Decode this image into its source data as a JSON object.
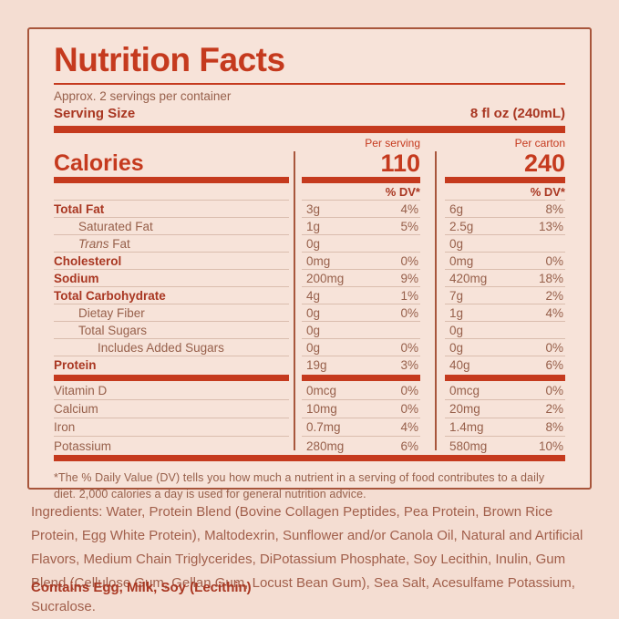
{
  "colors": {
    "page-bg": "#f4ddd2",
    "panel-bg": "#f7e3d9",
    "accent": "#c53a1e",
    "dark-red": "#a93722",
    "brown": "#97604b",
    "line": "#dabdae",
    "border": "#a8563c"
  },
  "header": {
    "title": "Nutrition Facts",
    "servings_per_container": "Approx. 2 servings per container",
    "serving_size_label": "Serving Size",
    "serving_size_value": "8 fl oz (240mL)"
  },
  "calories": {
    "label": "Calories",
    "per_serving_label": "Per serving",
    "per_serving_value": "110",
    "per_carton_label": "Per carton",
    "per_carton_value": "240",
    "dv_header": "% DV*"
  },
  "table": {
    "rows": [
      {
        "label": "Total Fat",
        "bold": true,
        "indent": 0,
        "s_amt": "3g",
        "s_dv": "4%",
        "c_amt": "6g",
        "c_dv": "8%"
      },
      {
        "label": "Saturated Fat",
        "bold": false,
        "indent": 1,
        "s_amt": "1g",
        "s_dv": "5%",
        "c_amt": "2.5g",
        "c_dv": "13%"
      },
      {
        "label": "Trans Fat",
        "italic_word": "Trans",
        "label_rest": "Fat",
        "bold": false,
        "indent": 1,
        "s_amt": "0g",
        "s_dv": "",
        "c_amt": "0g",
        "c_dv": ""
      },
      {
        "label": "Cholesterol",
        "bold": true,
        "indent": 0,
        "s_amt": "0mg",
        "s_dv": "0%",
        "c_amt": "0mg",
        "c_dv": "0%"
      },
      {
        "label": "Sodium",
        "bold": true,
        "indent": 0,
        "s_amt": "200mg",
        "s_dv": "9%",
        "c_amt": "420mg",
        "c_dv": "18%"
      },
      {
        "label": "Total Carbohydrate",
        "bold": true,
        "indent": 0,
        "s_amt": "4g",
        "s_dv": "1%",
        "c_amt": "7g",
        "c_dv": "2%"
      },
      {
        "label": "Dietay Fiber",
        "bold": false,
        "indent": 1,
        "s_amt": "0g",
        "s_dv": "0%",
        "c_amt": "1g",
        "c_dv": "4%"
      },
      {
        "label": "Total Sugars",
        "bold": false,
        "indent": 1,
        "s_amt": "0g",
        "s_dv": "",
        "c_amt": "0g",
        "c_dv": ""
      },
      {
        "label": "Includes Added Sugars",
        "bold": false,
        "indent": 2,
        "s_amt": "0g",
        "s_dv": "0%",
        "c_amt": "0g",
        "c_dv": "0%"
      },
      {
        "label": "Protein",
        "bold": true,
        "indent": 0,
        "s_amt": "19g",
        "s_dv": "3%",
        "c_amt": "40g",
        "c_dv": "6%"
      }
    ],
    "vitamins": [
      {
        "label": "Vitamin D",
        "bold": false,
        "indent": 0,
        "s_amt": "0mcg",
        "s_dv": "0%",
        "c_amt": "0mcg",
        "c_dv": "0%"
      },
      {
        "label": "Calcium",
        "bold": false,
        "indent": 0,
        "s_amt": "10mg",
        "s_dv": "0%",
        "c_amt": "20mg",
        "c_dv": "2%"
      },
      {
        "label": "Iron",
        "bold": false,
        "indent": 0,
        "s_amt": "0.7mg",
        "s_dv": "4%",
        "c_amt": "1.4mg",
        "c_dv": "8%"
      },
      {
        "label": "Potassium",
        "bold": false,
        "indent": 0,
        "s_amt": "280mg",
        "s_dv": "6%",
        "c_amt": "580mg",
        "c_dv": "10%"
      }
    ]
  },
  "footnote": "*The % Daily Value (DV) tells you how much a nutrient in a serving of food contributes to a daily diet. 2,000 calories a day is used for general nutrition advice.",
  "ingredients": "Ingredients: Water, Protein Blend (Bovine Collagen Peptides, Pea Protein, Brown Rice Protein, Egg White Protein), Maltodexrin, Sunflower and/or Canola Oil, Natural and Artificial Flavors, Medium Chain Triglycerides, DiPotassium Phosphate, Soy Lecithin, Inulin, Gum Blend (Cellulose Gum, Gellan Gum, Locust Bean Gum), Sea Salt, Acesulfame Potassium, Sucralose.",
  "contains": "Contains Egg, Milk, Soy (Lecithin)"
}
